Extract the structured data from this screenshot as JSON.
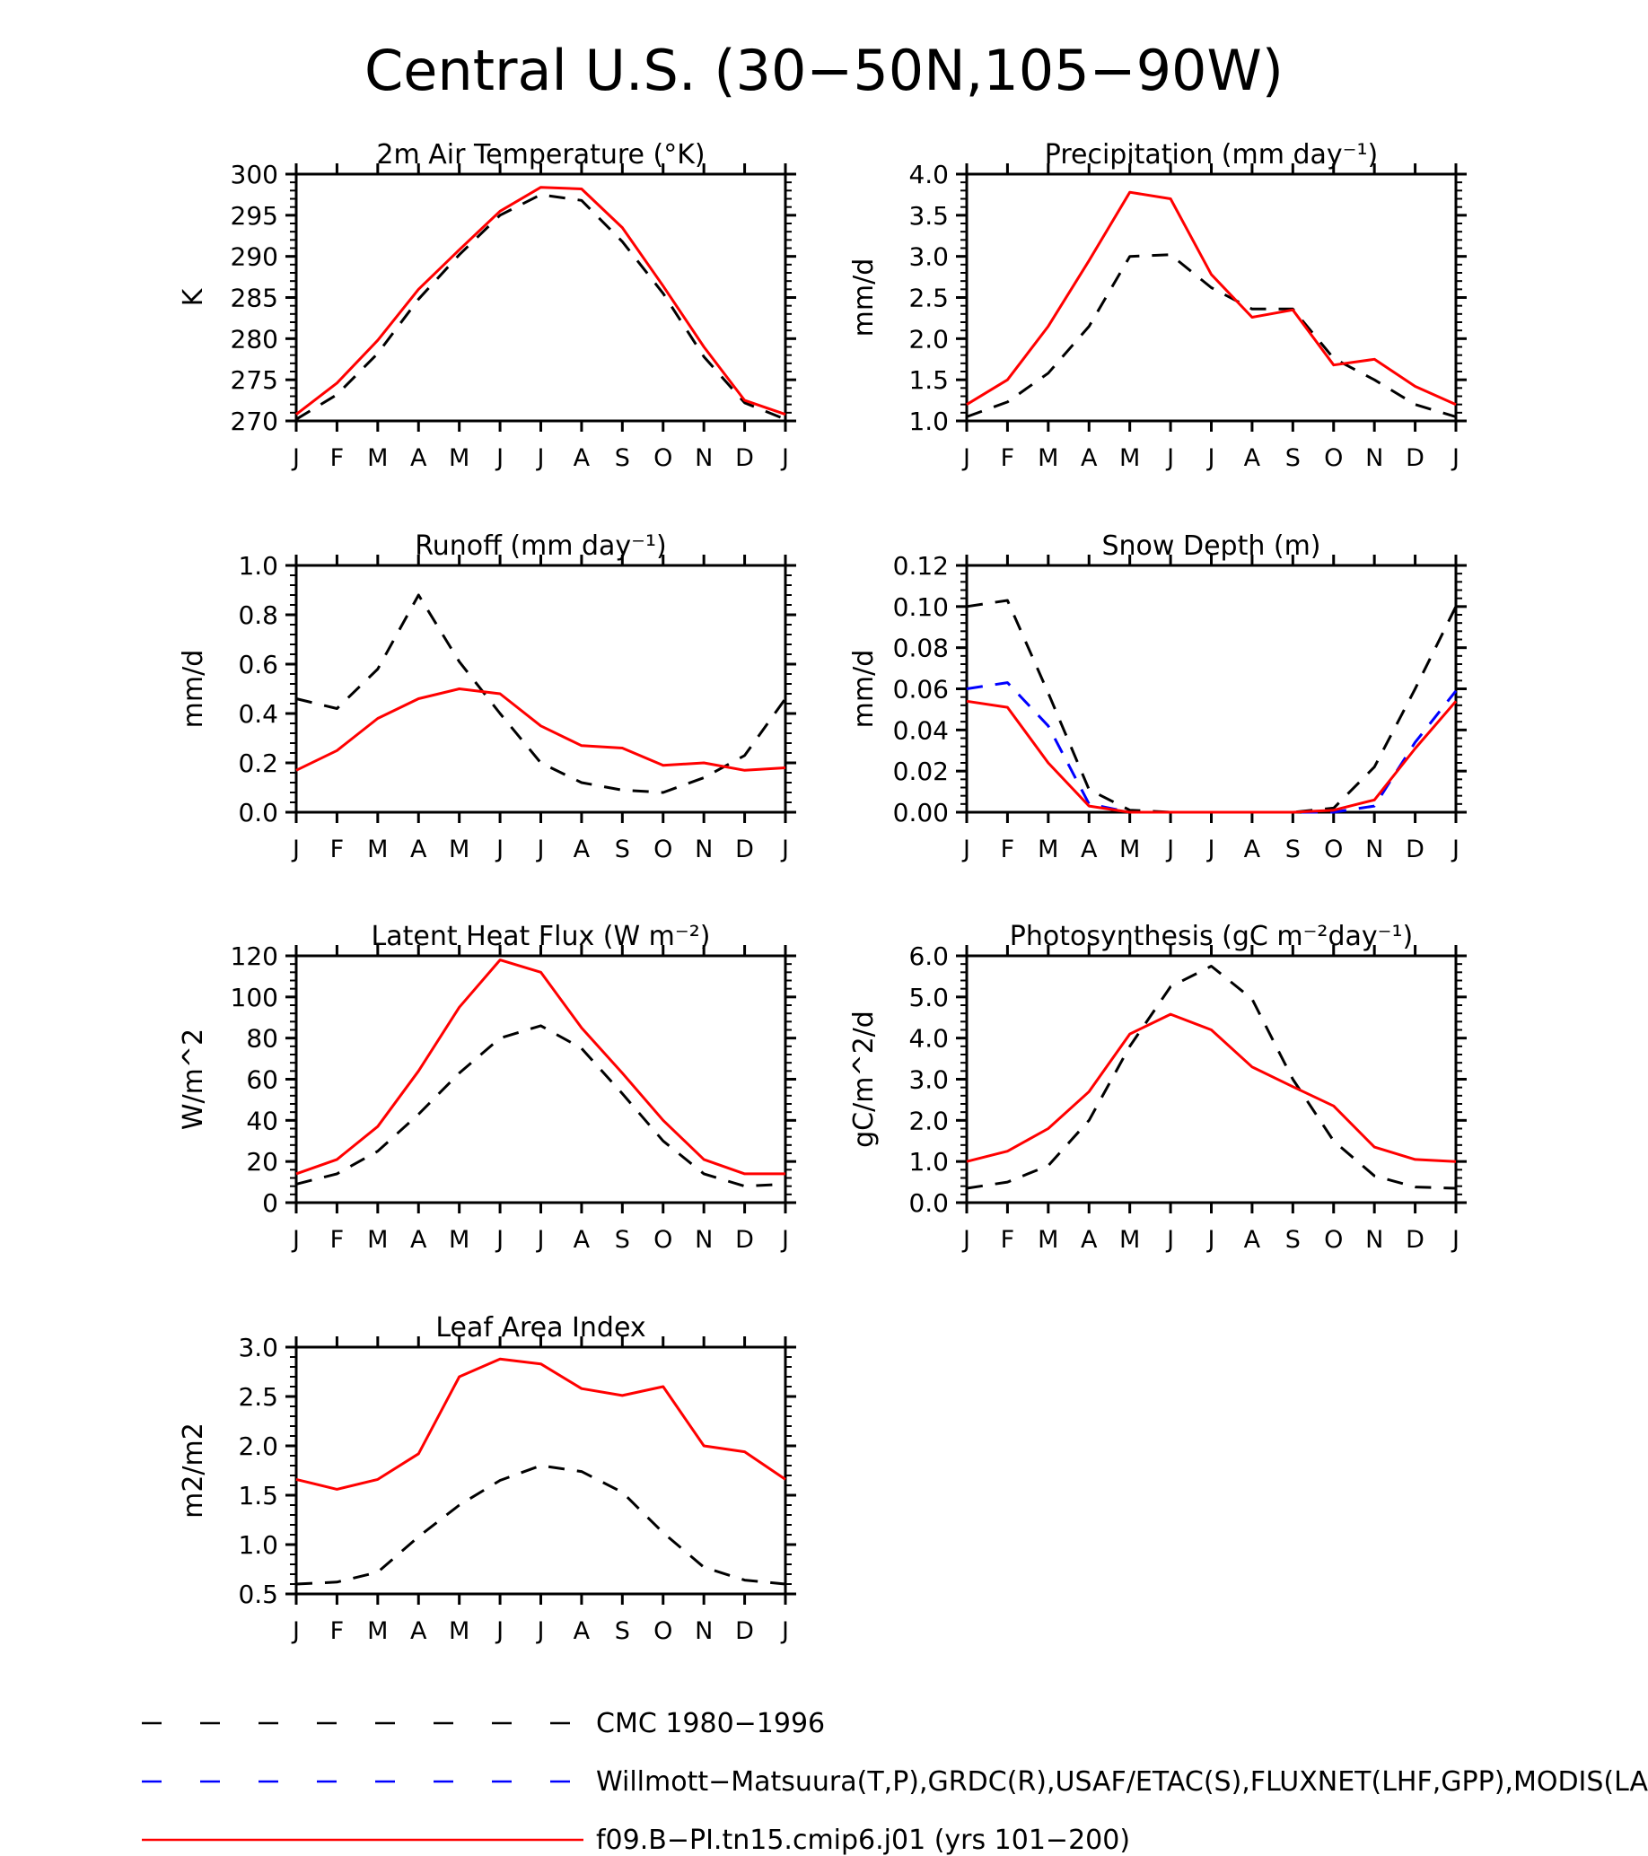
{
  "figure_title": "Central U.S. (30−50N,105−90W)",
  "months": [
    "J",
    "F",
    "M",
    "A",
    "M",
    "J",
    "J",
    "A",
    "S",
    "O",
    "N",
    "D",
    "J"
  ],
  "colors": {
    "cmc": "#000000",
    "obs": "#0000ff",
    "model": "#ff0000"
  },
  "legend": [
    {
      "key": "cmc",
      "label": "CMC 1980−1996",
      "color": "#000000",
      "dash": "dashed"
    },
    {
      "key": "obs",
      "label": "Willmott−Matsuura(T,P),GRDC(R),USAF/ETAC(S),FLUXNET(LHF,GPP),MODIS(LAI)",
      "color": "#0000ff",
      "dash": "dashed"
    },
    {
      "key": "model",
      "label": "f09.B−PI.tn15.cmip6.j01 (yrs 101−200)",
      "color": "#ff0000",
      "dash": "solid"
    }
  ],
  "chart_data": [
    {
      "type": "line",
      "title": "2m Air Temperature (°K)",
      "ylabel": "K",
      "ylim": [
        270,
        300
      ],
      "yticks": [
        270,
        275,
        280,
        285,
        290,
        295,
        300
      ],
      "ytick_labels": [
        "270",
        "275",
        "280",
        "285",
        "290",
        "295",
        "300"
      ],
      "categories": [
        "J",
        "F",
        "M",
        "A",
        "M",
        "J",
        "J",
        "A",
        "S",
        "O",
        "N",
        "D",
        "J"
      ],
      "series": [
        {
          "key": "cmc",
          "values": [
            270.2,
            273.2,
            278.2,
            284.8,
            290.2,
            295.0,
            297.5,
            296.8,
            291.8,
            285.5,
            277.8,
            272.2,
            270.2
          ]
        },
        {
          "key": "model",
          "values": [
            270.8,
            274.6,
            279.8,
            286.0,
            290.8,
            295.5,
            298.4,
            298.2,
            293.5,
            286.4,
            279.0,
            272.5,
            270.8
          ]
        }
      ]
    },
    {
      "type": "line",
      "title": "Precipitation (mm day⁻¹)",
      "ylabel": "mm/d",
      "ylim": [
        1.0,
        4.0
      ],
      "yticks": [
        1.0,
        1.5,
        2.0,
        2.5,
        3.0,
        3.5,
        4.0
      ],
      "ytick_labels": [
        "1.0",
        "1.5",
        "2.0",
        "2.5",
        "3.0",
        "3.5",
        "4.0"
      ],
      "categories": [
        "J",
        "F",
        "M",
        "A",
        "M",
        "J",
        "J",
        "A",
        "S",
        "O",
        "N",
        "D",
        "J"
      ],
      "series": [
        {
          "key": "cmc",
          "values": [
            1.05,
            1.23,
            1.58,
            2.15,
            3.0,
            3.02,
            2.62,
            2.36,
            2.36,
            1.76,
            1.5,
            1.2,
            1.05
          ]
        },
        {
          "key": "model",
          "values": [
            1.2,
            1.5,
            2.15,
            2.95,
            3.78,
            3.7,
            2.78,
            2.26,
            2.35,
            1.68,
            1.75,
            1.42,
            1.2
          ]
        }
      ]
    },
    {
      "type": "line",
      "title": "Runoff (mm day⁻¹)",
      "ylabel": "mm/d",
      "ylim": [
        0.0,
        1.0
      ],
      "yticks": [
        0.0,
        0.2,
        0.4,
        0.6,
        0.8,
        1.0
      ],
      "ytick_labels": [
        "0.0",
        "0.2",
        "0.4",
        "0.6",
        "0.8",
        "1.0"
      ],
      "categories": [
        "J",
        "F",
        "M",
        "A",
        "M",
        "J",
        "J",
        "A",
        "S",
        "O",
        "N",
        "D",
        "J"
      ],
      "series": [
        {
          "key": "cmc",
          "values": [
            0.46,
            0.42,
            0.58,
            0.88,
            0.61,
            0.4,
            0.2,
            0.12,
            0.09,
            0.08,
            0.14,
            0.23,
            0.46
          ]
        },
        {
          "key": "model",
          "values": [
            0.17,
            0.25,
            0.38,
            0.46,
            0.5,
            0.48,
            0.35,
            0.27,
            0.26,
            0.19,
            0.2,
            0.17,
            0.18
          ]
        }
      ]
    },
    {
      "type": "line",
      "title": "Snow Depth (m)",
      "ylabel": "mm/d",
      "ylim": [
        0.0,
        0.12
      ],
      "yticks": [
        0.0,
        0.02,
        0.04,
        0.06,
        0.08,
        0.1,
        0.12
      ],
      "ytick_labels": [
        "0.00",
        "0.02",
        "0.04",
        "0.06",
        "0.08",
        "0.10",
        "0.12"
      ],
      "categories": [
        "J",
        "F",
        "M",
        "A",
        "M",
        "J",
        "J",
        "A",
        "S",
        "O",
        "N",
        "D",
        "J"
      ],
      "series": [
        {
          "key": "cmc",
          "values": [
            0.1,
            0.103,
            0.058,
            0.011,
            0.001,
            0.0,
            0.0,
            0.0,
            0.0,
            0.002,
            0.022,
            0.06,
            0.1
          ]
        },
        {
          "key": "obs",
          "values": [
            0.06,
            0.063,
            0.042,
            0.004,
            0.0,
            0.0,
            0.0,
            0.0,
            0.0,
            0.0,
            0.003,
            0.034,
            0.059
          ]
        },
        {
          "key": "model",
          "values": [
            0.054,
            0.051,
            0.024,
            0.003,
            0.0,
            0.0,
            0.0,
            0.0,
            0.0,
            0.001,
            0.006,
            0.031,
            0.054
          ]
        }
      ]
    },
    {
      "type": "line",
      "title": "Latent Heat Flux (W m⁻²)",
      "ylabel": "W/m^2",
      "ylim": [
        0,
        120
      ],
      "yticks": [
        0,
        20,
        40,
        60,
        80,
        100,
        120
      ],
      "ytick_labels": [
        "0",
        "20",
        "40",
        "60",
        "80",
        "100",
        "120"
      ],
      "categories": [
        "J",
        "F",
        "M",
        "A",
        "M",
        "J",
        "J",
        "A",
        "S",
        "O",
        "N",
        "D",
        "J"
      ],
      "series": [
        {
          "key": "cmc",
          "values": [
            9,
            14,
            25,
            43,
            63,
            80,
            86,
            75,
            53,
            30,
            14,
            8,
            9
          ]
        },
        {
          "key": "model",
          "values": [
            14,
            21,
            37,
            64,
            95,
            118,
            112,
            85,
            63,
            40,
            21,
            14,
            14
          ]
        }
      ]
    },
    {
      "type": "line",
      "title": "Photosynthesis (gC m⁻²day⁻¹)",
      "ylabel": "gC/m^2/d",
      "ylim": [
        0.0,
        6.0
      ],
      "yticks": [
        0.0,
        1.0,
        2.0,
        3.0,
        4.0,
        5.0,
        6.0
      ],
      "ytick_labels": [
        "0.0",
        "1.0",
        "2.0",
        "3.0",
        "4.0",
        "5.0",
        "6.0"
      ],
      "categories": [
        "J",
        "F",
        "M",
        "A",
        "M",
        "J",
        "J",
        "A",
        "S",
        "O",
        "N",
        "D",
        "J"
      ],
      "series": [
        {
          "key": "cmc",
          "values": [
            0.35,
            0.5,
            0.9,
            2.0,
            3.8,
            5.25,
            5.75,
            4.95,
            3.0,
            1.5,
            0.65,
            0.38,
            0.35
          ]
        },
        {
          "key": "model",
          "values": [
            1.0,
            1.25,
            1.8,
            2.7,
            4.1,
            4.58,
            4.2,
            3.3,
            2.82,
            2.35,
            1.35,
            1.05,
            1.0
          ]
        }
      ]
    },
    {
      "type": "line",
      "title": "Leaf Area Index",
      "ylabel": "m2/m2",
      "ylim": [
        0.5,
        3.0
      ],
      "yticks": [
        0.5,
        1.0,
        1.5,
        2.0,
        2.5,
        3.0
      ],
      "ytick_labels": [
        "0.5",
        "1.0",
        "1.5",
        "2.0",
        "2.5",
        "3.0"
      ],
      "categories": [
        "J",
        "F",
        "M",
        "A",
        "M",
        "J",
        "J",
        "A",
        "S",
        "O",
        "N",
        "D",
        "J"
      ],
      "series": [
        {
          "key": "cmc",
          "values": [
            0.6,
            0.62,
            0.72,
            1.08,
            1.4,
            1.65,
            1.8,
            1.74,
            1.53,
            1.12,
            0.77,
            0.64,
            0.6
          ]
        },
        {
          "key": "model",
          "values": [
            1.66,
            1.56,
            1.66,
            1.92,
            2.7,
            2.88,
            2.83,
            2.58,
            2.51,
            2.6,
            2.0,
            1.94,
            1.66
          ]
        }
      ]
    }
  ]
}
